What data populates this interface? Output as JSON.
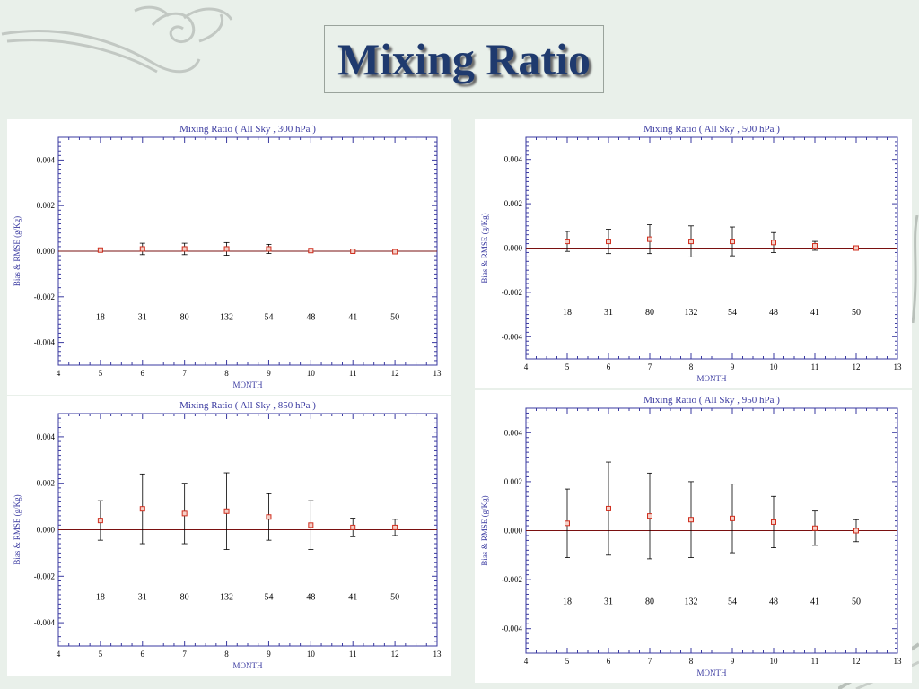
{
  "slide_title": "Mixing Ratio",
  "chart_data": [
    {
      "type": "scatter",
      "title": "Mixing Ratio ( All Sky , 300 hPa )",
      "xlabel": "MONTH",
      "ylabel": "Bias & RMSE (g/Kg)",
      "xlim": [
        4,
        13
      ],
      "ylim": [
        -0.005,
        0.005
      ],
      "xticks": [
        "4",
        "5",
        "6",
        "7",
        "8",
        "9",
        "10",
        "11",
        "12",
        "13"
      ],
      "yticks": [
        "0.004",
        "0.002",
        "0.000",
        "-0.002",
        "-0.004"
      ],
      "x": [
        5,
        6,
        7,
        8,
        9,
        10,
        11,
        12
      ],
      "bias": [
        5e-05,
        0.0001,
        0.0001,
        0.0001,
        0.0001,
        3e-05,
        0.0,
        -2e-05
      ],
      "rmse": [
        8e-05,
        0.00025,
        0.00025,
        0.00028,
        0.0002,
        8e-05,
        5e-05,
        4e-05
      ],
      "counts": [
        "18",
        "31",
        "80",
        "132",
        "54",
        "48",
        "41",
        "50"
      ],
      "count_y": -0.0029,
      "grid": false
    },
    {
      "type": "scatter",
      "title": "Mixing Ratio ( All Sky , 500 hPa )",
      "xlabel": "MONTH",
      "ylabel": "Bias & RMSE (g/Kg)",
      "xlim": [
        4,
        13
      ],
      "ylim": [
        -0.005,
        0.005
      ],
      "xticks": [
        "4",
        "5",
        "6",
        "7",
        "8",
        "9",
        "10",
        "11",
        "12",
        "13"
      ],
      "yticks": [
        "0.004",
        "0.002",
        "0.000",
        "-0.002",
        "-0.004"
      ],
      "x": [
        5,
        6,
        7,
        8,
        9,
        10,
        11,
        12
      ],
      "bias": [
        0.0003,
        0.0003,
        0.0004,
        0.0003,
        0.0003,
        0.00025,
        0.0001,
        0.0
      ],
      "rmse": [
        0.00045,
        0.00055,
        0.00065,
        0.0007,
        0.00065,
        0.00045,
        0.0002,
        0.0001
      ],
      "counts": [
        "18",
        "31",
        "80",
        "132",
        "54",
        "48",
        "41",
        "50"
      ],
      "count_y": -0.0029,
      "grid": false
    },
    {
      "type": "scatter",
      "title": "Mixing Ratio ( All Sky , 850 hPa )",
      "xlabel": "MONTH",
      "ylabel": "Bias & RMSE (g/Kg)",
      "xlim": [
        4,
        13
      ],
      "ylim": [
        -0.005,
        0.005
      ],
      "xticks": [
        "4",
        "5",
        "6",
        "7",
        "8",
        "9",
        "10",
        "11",
        "12",
        "13"
      ],
      "yticks": [
        "0.004",
        "0.002",
        "0.000",
        "-0.002",
        "-0.004"
      ],
      "x": [
        5,
        6,
        7,
        8,
        9,
        10,
        11,
        12
      ],
      "bias": [
        0.0004,
        0.0009,
        0.0007,
        0.0008,
        0.00055,
        0.0002,
        0.0001,
        0.0001
      ],
      "rmse": [
        0.00085,
        0.0015,
        0.0013,
        0.00165,
        0.001,
        0.00105,
        0.0004,
        0.00035
      ],
      "counts": [
        "18",
        "31",
        "80",
        "132",
        "54",
        "48",
        "41",
        "50"
      ],
      "count_y": -0.0029,
      "grid": false
    },
    {
      "type": "scatter",
      "title": "Mixing Ratio ( All Sky , 950 hPa )",
      "xlabel": "MONTH",
      "ylabel": "Bias & RMSE (g/Kg)",
      "xlim": [
        4,
        13
      ],
      "ylim": [
        -0.005,
        0.005
      ],
      "xticks": [
        "4",
        "5",
        "6",
        "7",
        "8",
        "9",
        "10",
        "11",
        "12",
        "13"
      ],
      "yticks": [
        "0.004",
        "0.002",
        "0.000",
        "-0.002",
        "-0.004"
      ],
      "x": [
        5,
        6,
        7,
        8,
        9,
        10,
        11,
        12
      ],
      "bias": [
        0.0003,
        0.0009,
        0.0006,
        0.00045,
        0.0005,
        0.00035,
        0.0001,
        0.0
      ],
      "rmse": [
        0.0014,
        0.0019,
        0.00175,
        0.00155,
        0.0014,
        0.00105,
        0.0007,
        0.00045
      ],
      "counts": [
        "18",
        "31",
        "80",
        "132",
        "54",
        "48",
        "41",
        "50"
      ],
      "count_y": -0.0029,
      "grid": false
    }
  ],
  "colors": {
    "axis": "#3a3aa0",
    "marker": "#d03020",
    "errorbar": "#000000",
    "zero_line": "#7a1010",
    "title_text": "#1f3a6e"
  }
}
